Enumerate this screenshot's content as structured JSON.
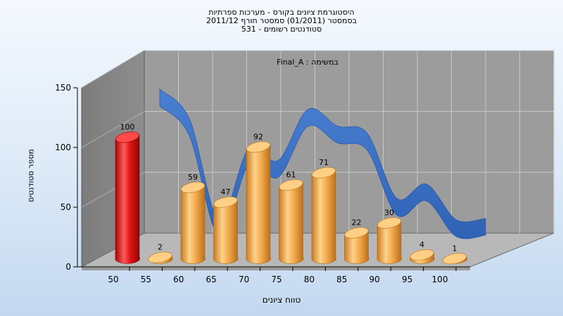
{
  "title": {
    "line1": "היסטוגרמת ציונים בקורס - מערכות ספרתיות",
    "line2": "בסמסטר  (01/2011)  סמסטר חורף 2011/12",
    "line3": "531 - סטודנטים רשומים"
  },
  "colors": {
    "highlight_bar": "#e01414",
    "bar": "#f0a545",
    "ribbon": "#3d73c4",
    "wall": "#9c9c9c",
    "floor": "#b8b8b8"
  },
  "chart_data": {
    "type": "bar",
    "title": "היסטוגרמת ציונים בקורס - מערכות ספרתיות",
    "annotation": "Final_A : במשימה",
    "xlabel": "טווח ציונים",
    "ylabel": "מספר סטודנטים",
    "x_tick_labels": [
      "50",
      "55",
      "60",
      "65",
      "70",
      "75",
      "80",
      "85",
      "90",
      "95",
      "100"
    ],
    "y_ticks": [
      0,
      50,
      100,
      150
    ],
    "ylim": [
      0,
      150
    ],
    "grid": true,
    "series": [
      {
        "type": "bar",
        "values": [
          100,
          2,
          59,
          47,
          92,
          61,
          71,
          22,
          30,
          4,
          1
        ],
        "highlight_index": 0
      },
      {
        "type": "ribbon",
        "values": [
          125,
          100,
          15,
          75,
          65,
          108,
          94,
          88,
          33,
          45,
          15,
          16
        ]
      }
    ]
  }
}
